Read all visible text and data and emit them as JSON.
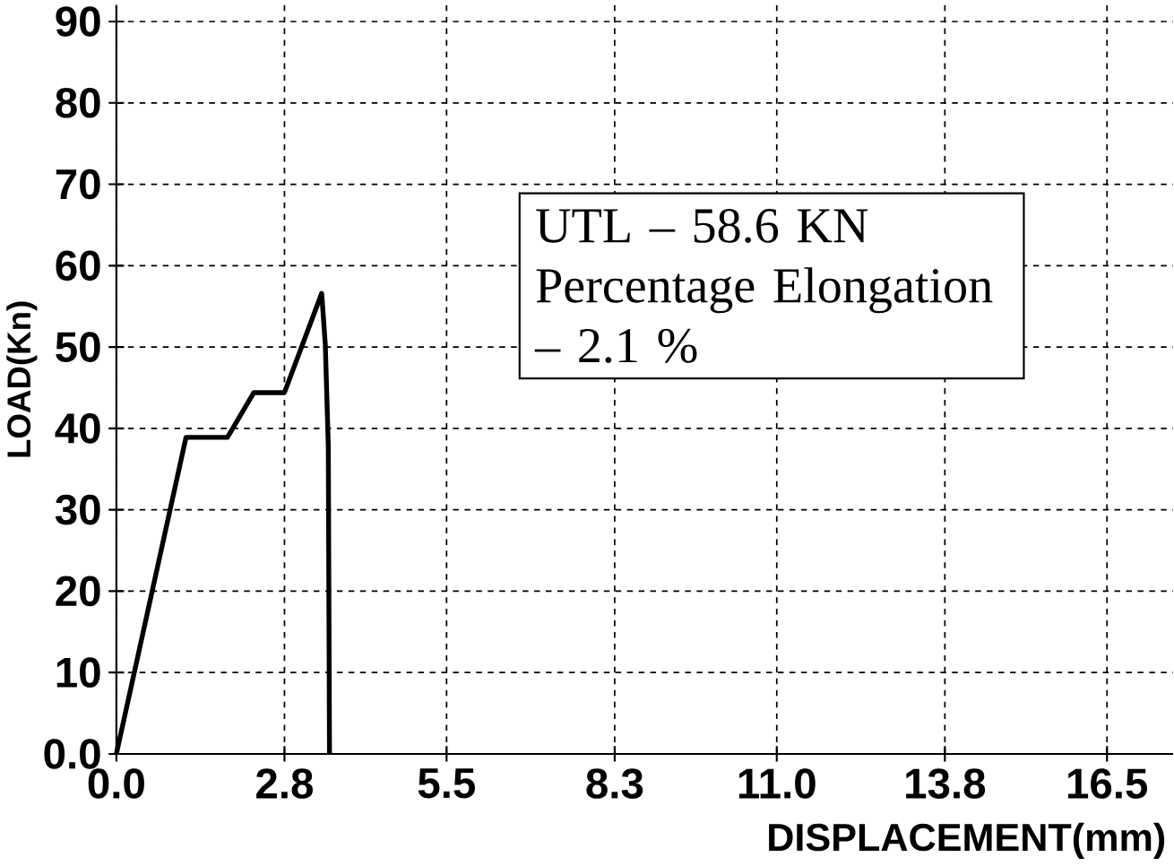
{
  "chart_data": {
    "type": "line",
    "xlabel": "DISPLACEMENT(mm)",
    "ylabel": "LOAD(Kn)",
    "x": [
      0,
      1.16,
      1.85,
      2.29,
      2.8,
      3.42,
      3.48,
      3.53,
      3.55
    ],
    "values": [
      0,
      38.9,
      38.9,
      44.4,
      44.4,
      56.6,
      50.3,
      37.8,
      0
    ],
    "color": "#000000",
    "marker": "none",
    "line_style": "solid",
    "xlim": [
      0,
      17.6
    ],
    "ylim": [
      0,
      92
    ],
    "xticks": [
      {
        "value": 0,
        "label": "0.0"
      },
      {
        "value": 2.8,
        "label": "2.8"
      },
      {
        "value": 5.5,
        "label": "5.5"
      },
      {
        "value": 8.3,
        "label": "8.3"
      },
      {
        "value": 11.0,
        "label": "11.0"
      },
      {
        "value": 13.8,
        "label": "13.8"
      },
      {
        "value": 16.5,
        "label": "16.5"
      }
    ],
    "yticks": [
      {
        "value": 0,
        "label": "0.0"
      },
      10,
      20,
      30,
      40,
      50,
      60,
      70,
      80,
      90
    ],
    "grid": true,
    "annotations": [
      "UTL – 58.6 KN Percentage Elongation – 2.1 %"
    ]
  }
}
